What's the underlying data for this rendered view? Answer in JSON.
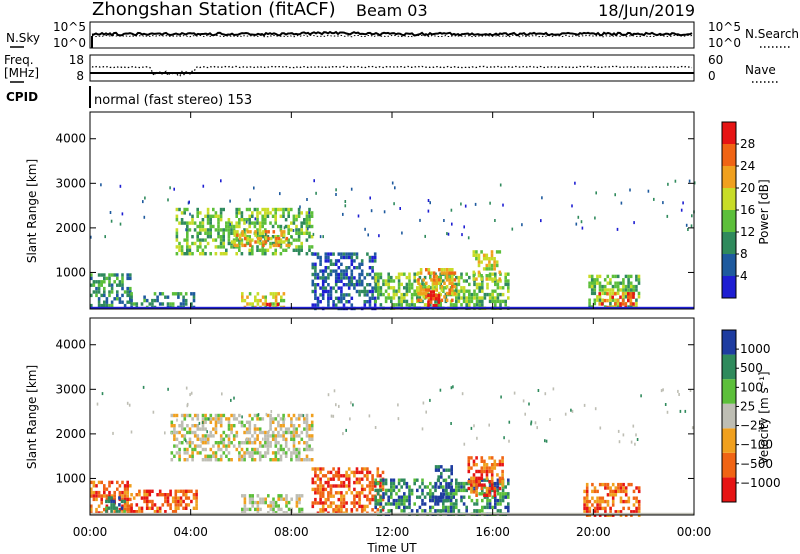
{
  "header": {
    "station": "Zhongshan Station (fitACF)",
    "beam": "Beam 03",
    "date": "18/Jun/2019"
  },
  "noise_panel": {
    "left_label": "N.Sky",
    "right_label": "N.Search",
    "left_ticks": [
      "10^5",
      "10^0"
    ],
    "right_ticks": [
      "10^5",
      "10^0"
    ]
  },
  "freq_panel": {
    "left_label_1": "Freq.",
    "left_label_2": "[MHz]",
    "right_label": "Nave",
    "left_ticks": [
      "18",
      "8"
    ],
    "right_ticks": [
      "60",
      "0"
    ]
  },
  "cpid": {
    "label": "CPID",
    "text": "normal (fast stereo) 153"
  },
  "colors": {
    "power": [
      "#1e1ed2",
      "#1e5a9e",
      "#2f8a5c",
      "#5cbf3a",
      "#c8dc28",
      "#f0a01e",
      "#f06414",
      "#e61414"
    ],
    "velocity": [
      "#e61414",
      "#f06414",
      "#f0a01e",
      "#bebeb4",
      "#5cbf3a",
      "#2f8a5c",
      "#1e3ca0"
    ]
  },
  "chart_data": [
    {
      "type": "heatmap",
      "name": "power-panel",
      "ylabel": "Slant Range [km]",
      "y_ticks": [
        "1000",
        "2000",
        "3000",
        "4000"
      ],
      "y_tick_values": [
        1000,
        2000,
        3000,
        4000
      ],
      "ylim": [
        180,
        4600
      ],
      "xlim": [
        0,
        24
      ],
      "colorbar_label": "Power [dB]",
      "colorbar_ticks": [
        "4",
        "8",
        "12",
        "16",
        "20",
        "24",
        "28"
      ],
      "colorbar_range": [
        0,
        32
      ],
      "regions": [
        {
          "t0": 0.0,
          "t1": 1.6,
          "r0": 250,
          "r1": 980,
          "level": 2
        },
        {
          "t0": 1.6,
          "t1": 4.1,
          "r0": 230,
          "r1": 560,
          "level": 2
        },
        {
          "t0": 3.4,
          "t1": 8.8,
          "r0": 1450,
          "r1": 2450,
          "level": 3
        },
        {
          "t0": 5.6,
          "t1": 7.9,
          "r0": 1580,
          "r1": 1950,
          "level": 5
        },
        {
          "t0": 6.0,
          "t1": 7.7,
          "r0": 200,
          "r1": 560,
          "level": 4
        },
        {
          "t0": 7.0,
          "t1": 7.5,
          "r0": 200,
          "r1": 320,
          "level": 7
        },
        {
          "t0": 8.8,
          "t1": 11.3,
          "r0": 200,
          "r1": 1450,
          "level": 1
        },
        {
          "t0": 11.3,
          "t1": 16.6,
          "r0": 200,
          "r1": 1000,
          "level": 3
        },
        {
          "t0": 13.0,
          "t1": 14.5,
          "r0": 350,
          "r1": 1100,
          "level": 5
        },
        {
          "t0": 13.4,
          "t1": 13.9,
          "r0": 220,
          "r1": 600,
          "level": 7
        },
        {
          "t0": 15.2,
          "t1": 16.3,
          "r0": 850,
          "r1": 1500,
          "level": 4
        },
        {
          "t0": 19.8,
          "t1": 21.8,
          "r0": 200,
          "r1": 950,
          "level": 3
        },
        {
          "t0": 20.2,
          "t1": 21.6,
          "r0": 200,
          "r1": 560,
          "level": 6
        }
      ]
    },
    {
      "type": "heatmap",
      "name": "velocity-panel",
      "ylabel": "Slant Range [km]",
      "xlabel": "Time UT",
      "x_ticks": [
        "00:00",
        "04:00",
        "08:00",
        "12:00",
        "16:00",
        "20:00",
        "00:00"
      ],
      "x_tick_values": [
        0,
        4,
        8,
        12,
        16,
        20,
        24
      ],
      "y_ticks": [
        "1000",
        "2000",
        "3000",
        "4000"
      ],
      "y_tick_values": [
        1000,
        2000,
        3000,
        4000
      ],
      "ylim": [
        180,
        4600
      ],
      "xlim": [
        0,
        24
      ],
      "colorbar_label": "Velocity [m s⁻¹]",
      "colorbar_ticks": [
        "1000",
        "500",
        "100",
        "25",
        "−25",
        "−100",
        "−500",
        "−1000"
      ],
      "regions": [
        {
          "t0": 0.0,
          "t1": 1.6,
          "r0": 250,
          "r1": 950,
          "level": 1
        },
        {
          "t0": 0.6,
          "t1": 1.4,
          "r0": 250,
          "r1": 600,
          "level": 5
        },
        {
          "t0": 1.6,
          "t1": 4.2,
          "r0": 230,
          "r1": 750,
          "level": 1
        },
        {
          "t0": 3.2,
          "t1": 8.8,
          "r0": 1450,
          "r1": 2450,
          "level": 3
        },
        {
          "t0": 6.0,
          "t1": 8.4,
          "r0": 200,
          "r1": 650,
          "level": 3
        },
        {
          "t0": 8.8,
          "t1": 11.6,
          "r0": 200,
          "r1": 1250,
          "level": 1
        },
        {
          "t0": 11.3,
          "t1": 16.6,
          "r0": 200,
          "r1": 1000,
          "level": 5
        },
        {
          "t0": 13.7,
          "t1": 14.4,
          "r0": 500,
          "r1": 1300,
          "level": 6
        },
        {
          "t0": 15.0,
          "t1": 16.4,
          "r0": 600,
          "r1": 1500,
          "level": 1
        },
        {
          "t0": 19.6,
          "t1": 21.8,
          "r0": 200,
          "r1": 900,
          "level": 1
        }
      ]
    }
  ]
}
